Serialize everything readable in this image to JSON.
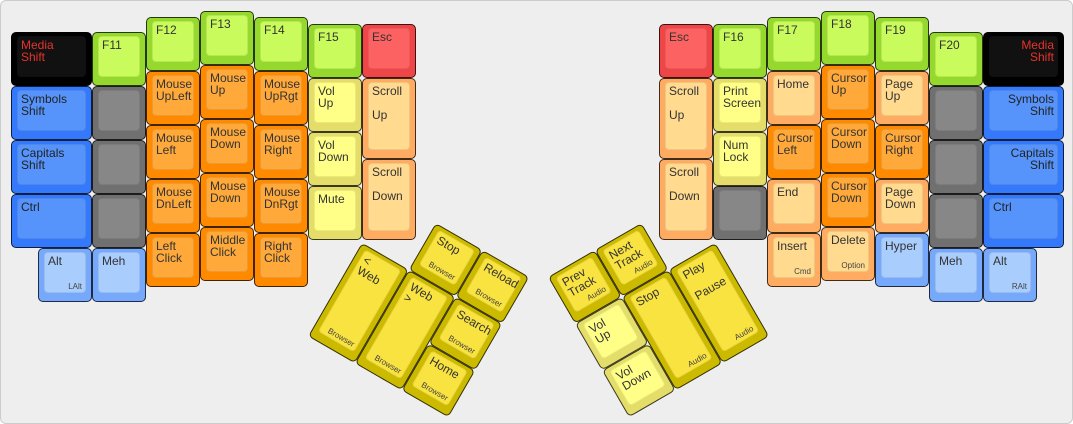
{
  "palette": {
    "black": {
      "outer": "#000000",
      "inner": "#111111",
      "text": "#e8322c"
    },
    "green": {
      "outer": "#96d92e",
      "inner": "#c9fb5c",
      "text": "#333333"
    },
    "orange": {
      "outer": "#ff8a00",
      "inner": "#ffa93a",
      "text": "#333333"
    },
    "blue": {
      "outer": "#3479fc",
      "inner": "#5694fb",
      "text": "#222222"
    },
    "lightblue": {
      "outer": "#76a9fb",
      "inner": "#a9cdfd",
      "text": "#333333"
    },
    "gray": {
      "outer": "#707070",
      "inner": "#878787",
      "text": "#333333"
    },
    "red": {
      "outer": "#ee4646",
      "inner": "#fd6262",
      "text": "#333333"
    },
    "paleyellow": {
      "outer": "#e4dd6a",
      "inner": "#ffff88",
      "text": "#333333"
    },
    "peach": {
      "outer": "#ffab62",
      "inner": "#ffda8f",
      "text": "#333333"
    },
    "yellow": {
      "outer": "#cbba00",
      "inner": "#f9e340",
      "text": "#333333"
    }
  },
  "left": {
    "keys": [
      {
        "label": "Media\nShift",
        "color": "black"
      },
      {
        "label": "F11",
        "color": "green"
      },
      {
        "label": "Symbols\nShift",
        "color": "blue"
      },
      {
        "label": "",
        "color": "gray"
      },
      {
        "label": "Capitals\nShift",
        "color": "blue"
      },
      {
        "label": "",
        "color": "gray"
      },
      {
        "label": "Ctrl",
        "color": "blue"
      },
      {
        "label": "",
        "color": "gray"
      },
      {
        "label": "Alt",
        "sub": "LAlt",
        "color": "lightblue"
      },
      {
        "label": "Meh",
        "color": "lightblue"
      },
      {
        "label": "F12",
        "color": "green"
      },
      {
        "label": "Mouse\nUpLeft",
        "color": "orange"
      },
      {
        "label": "Mouse\nLeft",
        "color": "orange"
      },
      {
        "label": "Mouse\nDnLeft",
        "color": "orange"
      },
      {
        "label": "Left\nClick",
        "color": "orange"
      },
      {
        "label": "F13",
        "color": "green"
      },
      {
        "label": "Mouse\nUp",
        "color": "orange"
      },
      {
        "label": "Mouse\nDown",
        "color": "orange"
      },
      {
        "label": "Mouse\nDown",
        "color": "orange"
      },
      {
        "label": "Middle\nClick",
        "color": "orange"
      },
      {
        "label": "F14",
        "color": "green"
      },
      {
        "label": "Mouse\nUpRgt",
        "color": "orange"
      },
      {
        "label": "Mouse\nRight",
        "color": "orange"
      },
      {
        "label": "Mouse\nDnRgt",
        "color": "orange"
      },
      {
        "label": "Right\nClick",
        "color": "orange"
      },
      {
        "label": "F15",
        "color": "green"
      },
      {
        "label": "Vol\nUp",
        "color": "paleyellow"
      },
      {
        "label": "Vol\nDown",
        "color": "paleyellow"
      },
      {
        "label": "Mute",
        "color": "paleyellow"
      },
      {
        "label": "Esc",
        "color": "red"
      },
      {
        "label": "Scroll\n\nUp",
        "color": "peach"
      },
      {
        "label": "Scroll\n\nDown",
        "color": "peach"
      }
    ],
    "thumb": [
      {
        "label": "Stop",
        "sub": "Browser",
        "color": "yellow"
      },
      {
        "label": "Reload",
        "sub": "Browser",
        "color": "yellow"
      },
      {
        "label": "< Web",
        "sub": "Browser",
        "color": "yellow"
      },
      {
        "label": "Web >",
        "sub": "Browser",
        "color": "yellow"
      },
      {
        "label": "Search",
        "sub": "Browser",
        "color": "yellow"
      },
      {
        "label": "Home",
        "sub": "Browser",
        "color": "yellow"
      }
    ]
  },
  "right": {
    "keys": [
      {
        "label": "Esc",
        "color": "red"
      },
      {
        "label": "Scroll\n\nUp",
        "color": "peach"
      },
      {
        "label": "Scroll\n\nDown",
        "color": "peach"
      },
      {
        "label": "F16",
        "color": "green"
      },
      {
        "label": "Print\nScreen",
        "color": "paleyellow"
      },
      {
        "label": "Num\nLock",
        "color": "paleyellow"
      },
      {
        "label": "",
        "color": "gray"
      },
      {
        "label": "F17",
        "color": "green"
      },
      {
        "label": "Home",
        "color": "peach"
      },
      {
        "label": "Cursor\nLeft",
        "color": "orange"
      },
      {
        "label": "End",
        "color": "peach"
      },
      {
        "label": "Insert",
        "sub": "Cmd",
        "color": "peach"
      },
      {
        "label": "F18",
        "color": "green"
      },
      {
        "label": "Cursor\nUp",
        "color": "orange"
      },
      {
        "label": "Cursor\nDown",
        "color": "orange"
      },
      {
        "label": "Cursor\nDown",
        "color": "orange"
      },
      {
        "label": "Delete",
        "sub": "Option",
        "color": "peach"
      },
      {
        "label": "F19",
        "color": "green"
      },
      {
        "label": "Page\nUp",
        "color": "peach"
      },
      {
        "label": "Cursor\nRight",
        "color": "orange"
      },
      {
        "label": "Page\nDown",
        "color": "peach"
      },
      {
        "label": "Hyper",
        "color": "lightblue"
      },
      {
        "label": "F20",
        "color": "green"
      },
      {
        "label": "",
        "color": "gray"
      },
      {
        "label": "",
        "color": "gray"
      },
      {
        "label": "",
        "color": "gray"
      },
      {
        "label": "Meh",
        "color": "lightblue"
      },
      {
        "label": "Media\nShift",
        "color": "black"
      },
      {
        "label": "Symbols\nShift",
        "color": "blue"
      },
      {
        "label": "Capitals\nShift",
        "color": "blue"
      },
      {
        "label": "Ctrl",
        "color": "blue"
      },
      {
        "label": "Alt",
        "sub": "RAlt",
        "color": "lightblue"
      }
    ],
    "thumb": [
      {
        "label": "Prev\nTrack",
        "sub": "Audio",
        "color": "yellow"
      },
      {
        "label": "Next\nTrack",
        "sub": "Audio",
        "color": "yellow"
      },
      {
        "label": "Vol\nUp",
        "color": "paleyellow"
      },
      {
        "label": "Vol\nDown",
        "color": "paleyellow"
      },
      {
        "label": "Stop",
        "sub": "Audio",
        "color": "yellow"
      },
      {
        "label": "Play\n\nPause",
        "sub": "Audio",
        "color": "yellow"
      }
    ]
  }
}
